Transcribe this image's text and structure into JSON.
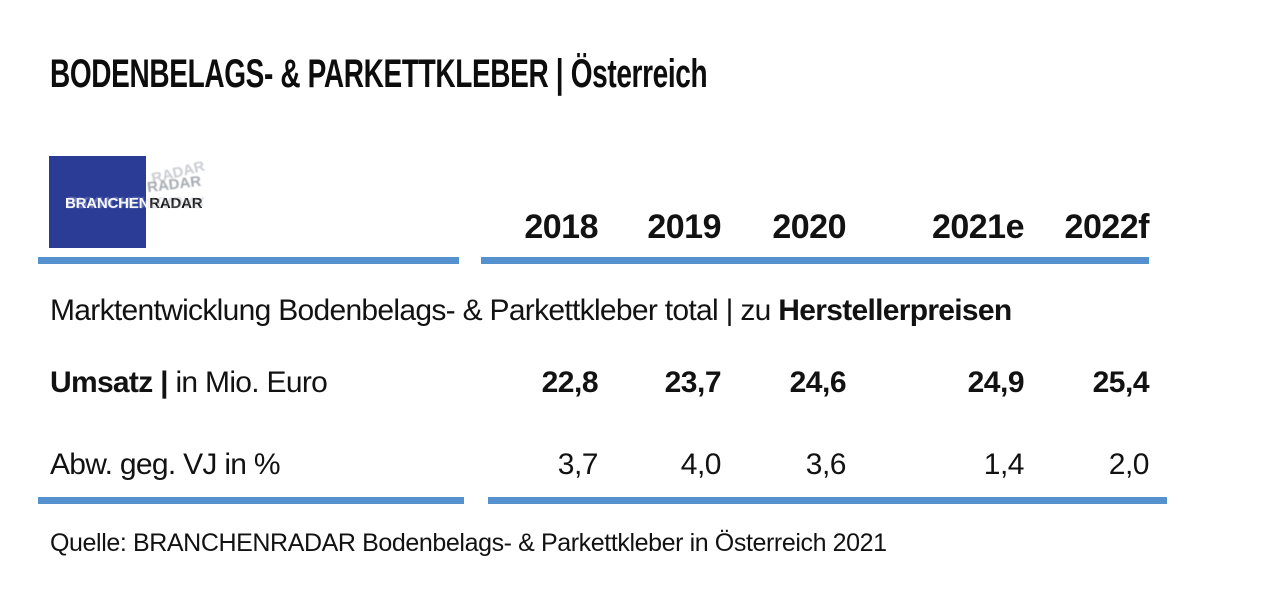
{
  "header": {
    "title": "BODENBELAGS- & PARKETTKLEBER | Österreich"
  },
  "logo": {
    "branchen": "BRANCHEN",
    "radar": "RADAR"
  },
  "table": {
    "years": [
      "2018",
      "2019",
      "2020",
      "2021e",
      "2022f"
    ],
    "section_title_regular": "Marktentwicklung Bodenbelags- & Parkettkleber total | zu",
    "section_title_bold": "Herstellerpreisen",
    "rows": [
      {
        "label_bold": "Umsatz |",
        "label_rest": " in Mio. Euro",
        "values": [
          "22,8",
          "23,7",
          "24,6",
          "24,9",
          "25,4"
        ]
      },
      {
        "label_bold": "",
        "label_rest": "Abw. geg. VJ in %",
        "values": [
          "3,7",
          "4,0",
          "3,6",
          "1,4",
          "2,0"
        ]
      }
    ]
  },
  "footer": {
    "source": "Quelle: BRANCHENRADAR Bodenbelags- & Parkettkleber in Österreich 2021"
  },
  "colors": {
    "accent_line": "#5591CE",
    "logo_blue": "#2B3C97",
    "text": "#121212"
  },
  "chart_data": {
    "type": "table",
    "title": "BODENBELAGS- & PARKETTKLEBER | Österreich",
    "subtitle": "Marktentwicklung Bodenbelags- & Parkettkleber total | zu Herstellerpreisen",
    "categories": [
      "2018",
      "2019",
      "2020",
      "2021e",
      "2022f"
    ],
    "series": [
      {
        "name": "Umsatz | in Mio. Euro",
        "values": [
          22.8,
          23.7,
          24.6,
          24.9,
          25.4
        ]
      },
      {
        "name": "Abw. geg. VJ in %",
        "values": [
          3.7,
          4.0,
          3.6,
          1.4,
          2.0
        ]
      }
    ],
    "source": "Quelle: BRANCHENRADAR Bodenbelags- & Parkettkleber in Österreich 2021",
    "layout": {
      "grid": false,
      "legend": "none",
      "value_format": "decimal-comma"
    }
  }
}
